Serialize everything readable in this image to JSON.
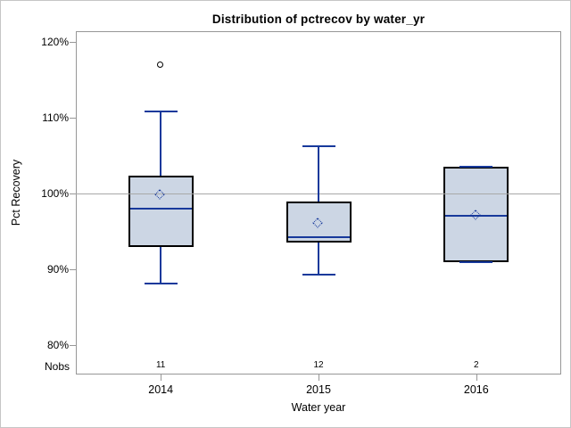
{
  "chart_data": {
    "type": "boxplot",
    "title": "Distribution of pctrecov by water_yr",
    "xlabel": "Water year",
    "ylabel": "Pct Recovery",
    "nobs_label": "Nobs",
    "ylim": [
      80,
      120
    ],
    "ytick_values": [
      120,
      110,
      100,
      90,
      80
    ],
    "ytick_labels": [
      "120%",
      "110%",
      "100%",
      "90%",
      "80%"
    ],
    "reference_line_y": 100,
    "categories": [
      "2014",
      "2015",
      "2016"
    ],
    "nobs": [
      "11",
      "12",
      "2"
    ],
    "series": [
      {
        "category": "2014",
        "n": 11,
        "whisker_low": 88.1,
        "q1": 92.9,
        "median": 98.0,
        "q3": 102.3,
        "whisker_high": 110.8,
        "mean": 99.8,
        "outliers": [
          117.0
        ]
      },
      {
        "category": "2015",
        "n": 12,
        "whisker_low": 89.3,
        "q1": 93.5,
        "median": 94.2,
        "q3": 98.9,
        "whisker_high": 106.2,
        "mean": 96.0,
        "outliers": []
      },
      {
        "category": "2016",
        "n": 2,
        "whisker_low": 90.9,
        "q1": 90.9,
        "median": 97.1,
        "q3": 103.5,
        "whisker_high": 103.5,
        "mean": 97.1,
        "outliers": []
      }
    ],
    "legend": null,
    "grid": "reference-line-only",
    "colors": {
      "box_fill": "#ccd6e4",
      "box_border": "#000000",
      "line_blue": "#17399b",
      "frame_gray": "#979797",
      "grid_gray": "#a8a8a8",
      "text": "#000000",
      "background": "#ffffff"
    }
  }
}
